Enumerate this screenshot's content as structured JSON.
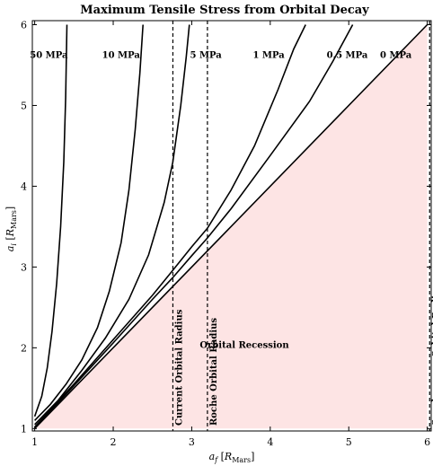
{
  "chart_data": {
    "type": "line",
    "title": "Maximum Tensile Stress from Orbital Decay",
    "xlabel": {
      "main": "a",
      "sub": "f",
      "unit": "R",
      "unit_sub": "Mars"
    },
    "ylabel": {
      "main": "a",
      "sub": "i",
      "unit": "R",
      "unit_sub": "Mars"
    },
    "xlim": [
      0.97,
      6.05
    ],
    "ylim": [
      0.97,
      6.05
    ],
    "xticks": [
      1,
      2,
      3,
      4,
      5,
      6
    ],
    "yticks": [
      1,
      2,
      3,
      4,
      5,
      6
    ],
    "grid": false,
    "shaded_region": {
      "label": "Orbital Recession",
      "label_at": [
        3.67,
        2.0
      ],
      "color": "#fde4e4",
      "boundary": [
        [
          1,
          1
        ],
        [
          6,
          6
        ],
        [
          6,
          1
        ]
      ]
    },
    "vertical_lines": [
      {
        "label": "Current Orbital Radius",
        "x": 2.76
      },
      {
        "label": "Roche Orbital Radius",
        "x": 3.2
      },
      {
        "label": "Synchronous Orbital Radius",
        "x": 6.03
      }
    ],
    "series": [
      {
        "name": "50 MPa",
        "label_at": [
          1.18,
          5.59
        ],
        "points": [
          [
            1.0,
            1.15
          ],
          [
            1.09,
            1.4
          ],
          [
            1.16,
            1.75
          ],
          [
            1.22,
            2.2
          ],
          [
            1.28,
            2.8
          ],
          [
            1.33,
            3.5
          ],
          [
            1.37,
            4.3
          ],
          [
            1.395,
            5.1
          ],
          [
            1.41,
            6.0
          ]
        ]
      },
      {
        "name": "10 MPa",
        "label_at": [
          2.1,
          5.59
        ],
        "points": [
          [
            1.0,
            1.1
          ],
          [
            1.2,
            1.3
          ],
          [
            1.4,
            1.55
          ],
          [
            1.6,
            1.85
          ],
          [
            1.8,
            2.25
          ],
          [
            1.95,
            2.7
          ],
          [
            2.1,
            3.3
          ],
          [
            2.2,
            3.95
          ],
          [
            2.28,
            4.7
          ],
          [
            2.34,
            5.4
          ],
          [
            2.38,
            6.0
          ]
        ]
      },
      {
        "name": "5 MPa",
        "label_at": [
          3.18,
          5.59
        ],
        "points": [
          [
            1.0,
            1.05
          ],
          [
            1.3,
            1.35
          ],
          [
            1.6,
            1.72
          ],
          [
            1.9,
            2.12
          ],
          [
            2.2,
            2.6
          ],
          [
            2.45,
            3.15
          ],
          [
            2.65,
            3.8
          ],
          [
            2.76,
            4.3
          ],
          [
            2.86,
            5.0
          ],
          [
            2.93,
            5.6
          ],
          [
            2.97,
            6.0
          ]
        ]
      },
      {
        "name": "1 MPa",
        "label_at": [
          3.98,
          5.59
        ],
        "points": [
          [
            1.0,
            1.02
          ],
          [
            1.5,
            1.55
          ],
          [
            2.0,
            2.1
          ],
          [
            2.5,
            2.65
          ],
          [
            2.76,
            2.96
          ],
          [
            3.0,
            3.25
          ],
          [
            3.2,
            3.48
          ],
          [
            3.5,
            3.95
          ],
          [
            3.8,
            4.5
          ],
          [
            4.1,
            5.2
          ],
          [
            4.3,
            5.7
          ],
          [
            4.45,
            6.0
          ]
        ]
      },
      {
        "name": "0.5 MPa",
        "label_at": [
          4.98,
          5.59
        ],
        "points": [
          [
            1.0,
            1.01
          ],
          [
            1.5,
            1.53
          ],
          [
            2.0,
            2.06
          ],
          [
            2.5,
            2.6
          ],
          [
            2.76,
            2.87
          ],
          [
            3.0,
            3.14
          ],
          [
            3.2,
            3.36
          ],
          [
            3.5,
            3.72
          ],
          [
            4.0,
            4.38
          ],
          [
            4.5,
            5.05
          ],
          [
            4.8,
            5.55
          ],
          [
            5.05,
            6.0
          ]
        ]
      },
      {
        "name": "0 MPa",
        "label_at": [
          5.6,
          5.59
        ],
        "points": [
          [
            1.0,
            1.0
          ],
          [
            6.0,
            6.0
          ]
        ]
      }
    ]
  }
}
